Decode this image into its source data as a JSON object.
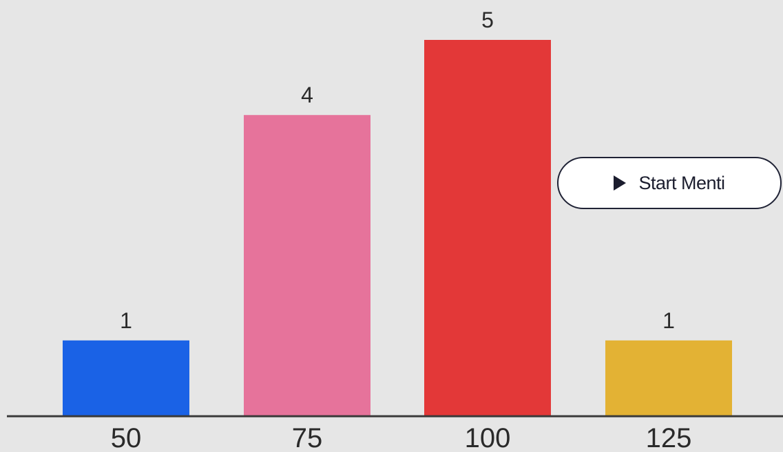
{
  "chart_data": {
    "type": "bar",
    "categories": [
      "50",
      "75",
      "100",
      "125"
    ],
    "values": [
      1,
      4,
      5,
      1
    ],
    "colors": [
      "#1a62e6",
      "#e6739b",
      "#e33838",
      "#e3b234"
    ],
    "ylim": [
      0,
      5
    ],
    "grid": false,
    "legend": "none",
    "axis_color": "#3a3a3a"
  },
  "start_button": {
    "label": "Start Menti",
    "icon": "play-icon"
  }
}
